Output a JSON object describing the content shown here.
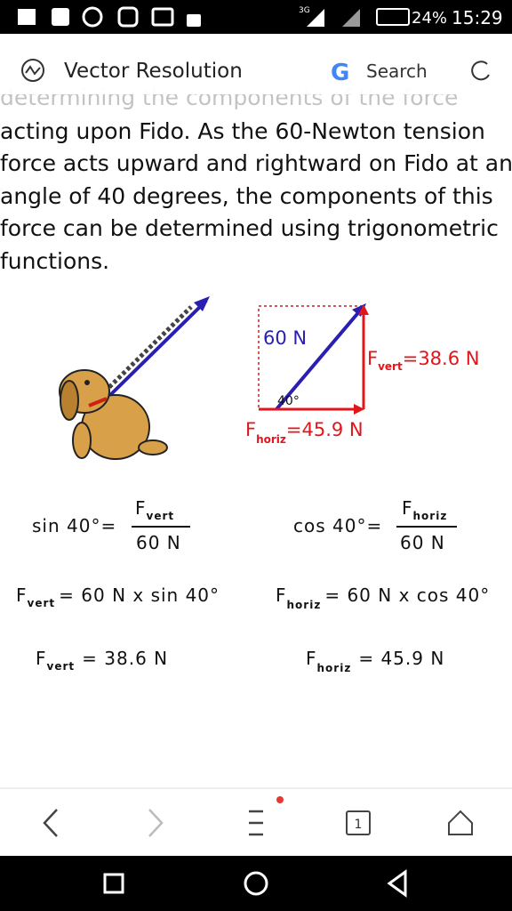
{
  "status_bar": {
    "network": "3G",
    "battery": "24%",
    "time": "15:29"
  },
  "toolbar": {
    "title": "Vector Resolution",
    "search": "Search"
  },
  "article": {
    "faded_line": "determining the components of the force",
    "paragraph_lines": [
      "acting upon Fido. As the 60-Newton tension",
      "force acts upward and rightward on Fido at an",
      "angle of 40 degrees, the components of this",
      "force can be determined using trigonometric",
      "functions."
    ]
  },
  "diagram": {
    "hypotenuse": "60 N",
    "angle": "40°",
    "vertical": {
      "symbol": "F",
      "subscript": "vert",
      "value": "=38.6 N"
    },
    "horizontal": {
      "symbol": "F",
      "subscript": "horiz",
      "value": "=45.9 N"
    }
  },
  "equations": {
    "sin": {
      "lhs": "sin 40°",
      "equals": "=",
      "symbol": "F",
      "subscript": "vert",
      "denominator": "60 N"
    },
    "cos": {
      "lhs": "cos 40°",
      "equals": "=",
      "symbol": "F",
      "subscript": "horiz",
      "denominator": "60 N"
    },
    "vert_product": {
      "symbol": "F",
      "subscript": "vert",
      "rhs": "= 60 N x sin 40°"
    },
    "horiz_product": {
      "symbol": "F",
      "subscript": "horiz",
      "rhs": "= 60 N x cos 40°"
    },
    "vert_result": {
      "symbol": "F",
      "subscript": "vert",
      "rhs": "= 38.6 N"
    },
    "horiz_result": {
      "symbol": "F",
      "subscript": "horiz",
      "rhs": "= 45.9 N"
    }
  },
  "nav": {
    "tab_count": "1"
  }
}
